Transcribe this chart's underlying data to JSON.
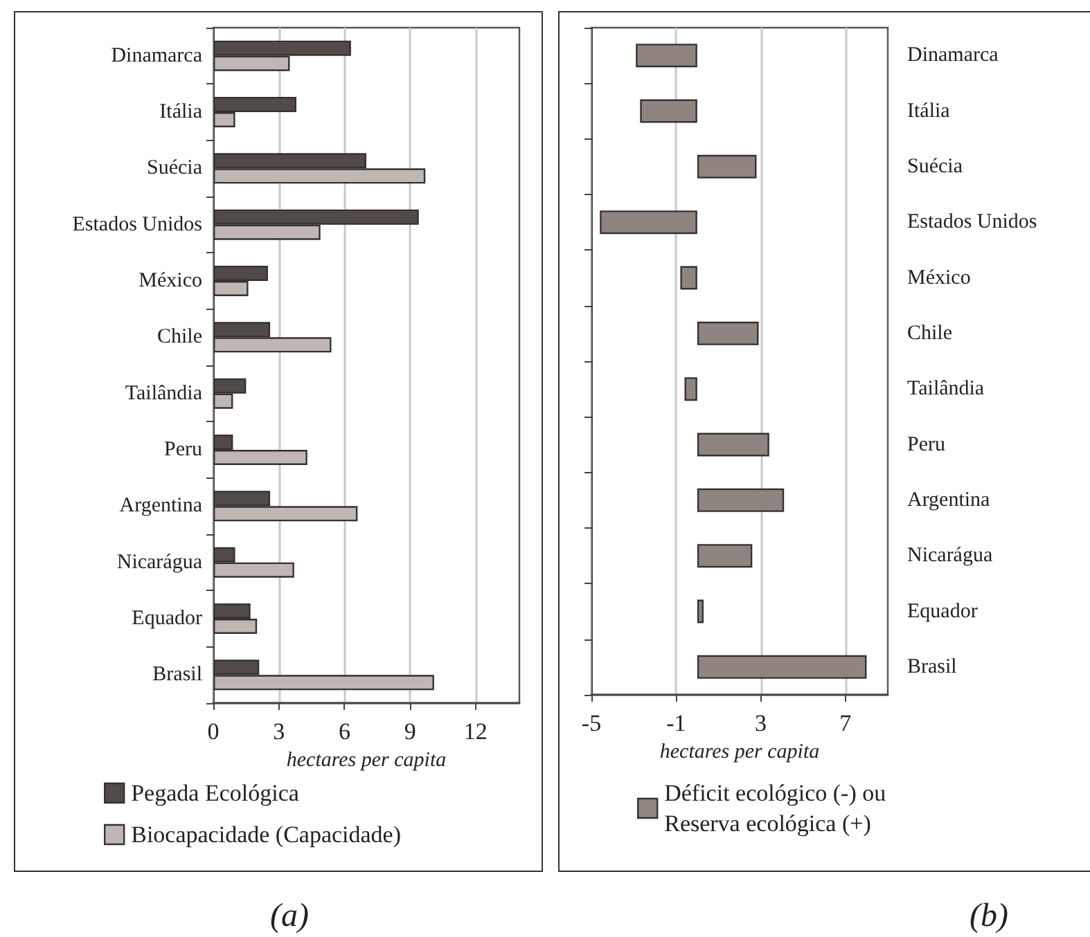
{
  "chart_data": [
    {
      "type": "bar",
      "orientation": "horizontal",
      "categories": [
        "Dinamarca",
        "Itália",
        "Suécia",
        "Estados Unidos",
        "México",
        "Chile",
        "Tailândia",
        "Peru",
        "Argentina",
        "Nicarágua",
        "Equador",
        "Brasil"
      ],
      "series": [
        {
          "name": "Pegada Ecológica",
          "color": "#524a47",
          "values": [
            6.3,
            3.8,
            7.0,
            9.4,
            2.5,
            2.6,
            1.5,
            0.9,
            2.6,
            1.0,
            1.7,
            2.1
          ]
        },
        {
          "name": "Biocapacidade (Capacidade)",
          "color": "#c0b6b3",
          "values": [
            3.5,
            1.0,
            9.7,
            4.9,
            1.6,
            5.4,
            0.9,
            4.3,
            6.6,
            3.7,
            2.0,
            10.1
          ]
        }
      ],
      "xlim": [
        0,
        14
      ],
      "xticks": [
        0,
        3,
        6,
        9,
        12
      ],
      "xlabel": "hectares per capita",
      "grid": "x",
      "legend": "bottom",
      "annotations": [
        "(a)"
      ]
    },
    {
      "type": "bar",
      "orientation": "horizontal",
      "categories": [
        "Dinamarca",
        "Itália",
        "Suécia",
        "Estados Unidos",
        "México",
        "Chile",
        "Tailândia",
        "Peru",
        "Argentina",
        "Nicarágua",
        "Equador",
        "Brasil"
      ],
      "series": [
        {
          "name": "Déficit ecológico (-) ou\nReserva ecológica (+)",
          "color": "#8f8480",
          "values": [
            -2.9,
            -2.7,
            2.8,
            -4.6,
            -0.8,
            2.9,
            -0.6,
            3.4,
            4.1,
            2.6,
            0.3,
            8.0
          ]
        }
      ],
      "xlim": [
        -5,
        9
      ],
      "xticks": [
        -5,
        -1,
        3,
        7
      ],
      "xlabel": "hectares per capita",
      "grid": "x",
      "legend": "bottom",
      "annotations": [
        "(b)"
      ]
    }
  ]
}
